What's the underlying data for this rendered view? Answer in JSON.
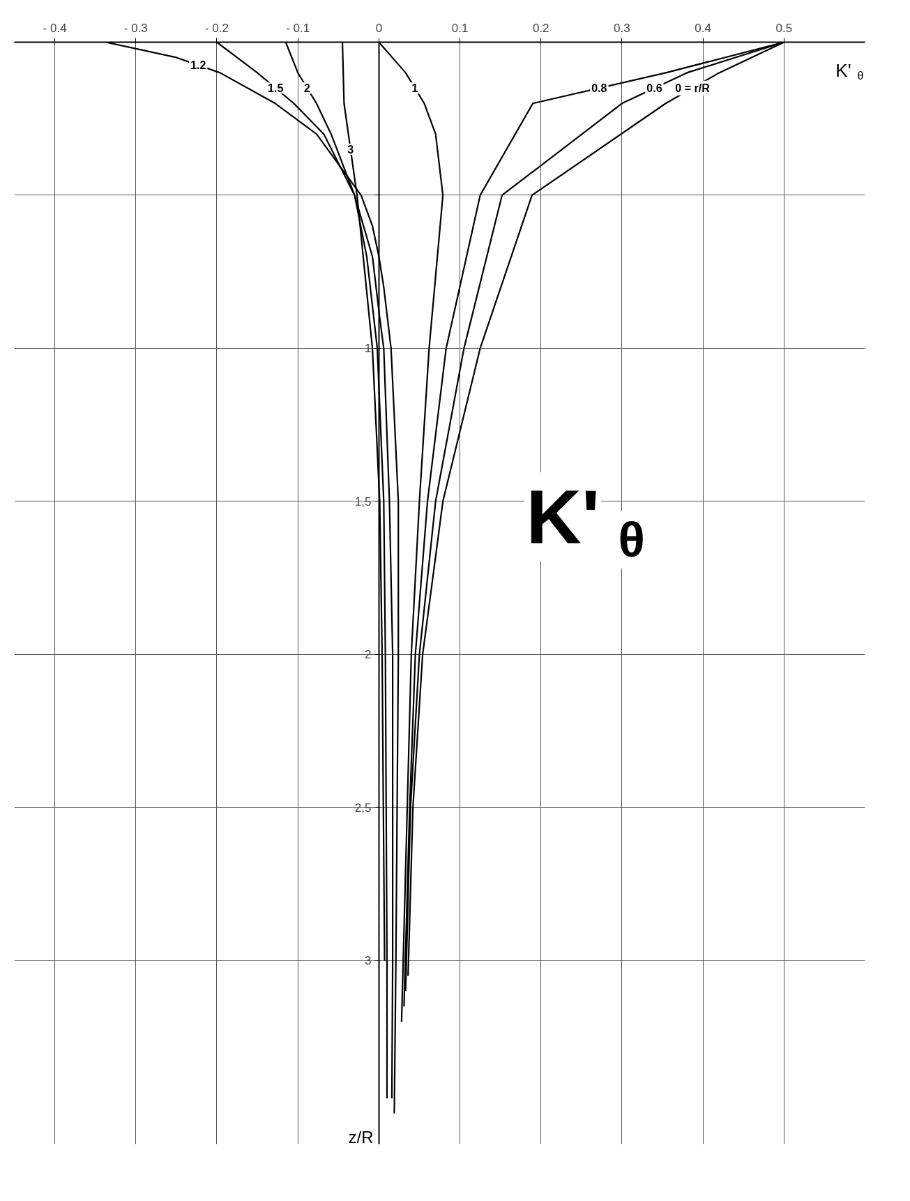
{
  "chart_data": {
    "type": "line",
    "xlabel": "K'$_{θ}$",
    "ylabel": "z/R",
    "annotations": [
      "K'$_{θ}$"
    ],
    "xlim": [
      -0.45,
      0.6
    ],
    "ylim": [
      3.6,
      0
    ],
    "xticks": [
      {
        "value": -0.4,
        "label": "- 0.4"
      },
      {
        "value": -0.3,
        "label": "- 0.3"
      },
      {
        "value": -0.2,
        "label": "- 0.2"
      },
      {
        "value": -0.1,
        "label": "- 0.1"
      },
      0,
      0.1,
      0.2,
      0.3,
      0.4,
      0.5
    ],
    "yticks": [
      {
        "value": 0.5,
        "label": null
      },
      1,
      {
        "value": 1.5,
        "label": "1,5"
      },
      2,
      {
        "value": 2.5,
        "label": "2,5"
      },
      3
    ],
    "grid": true,
    "marker": "none",
    "line_style": "solid",
    "series": [
      {
        "name": "0 = r/R",
        "color": "#000000",
        "x": [
          0.5,
          0.42,
          0.354,
          0.189,
          0.125,
          0.079,
          0.054,
          0.042,
          0.036
        ],
        "values": [
          0,
          0.1,
          0.2,
          0.5,
          1,
          1.5,
          2,
          2.5,
          3.05
        ]
      },
      {
        "name": "0.6",
        "color": "#000000",
        "x": [
          0.5,
          0.38,
          0.3,
          0.152,
          0.105,
          0.07,
          0.05,
          0.039,
          0.033
        ],
        "values": [
          0,
          0.1,
          0.2,
          0.5,
          1,
          1.5,
          2,
          2.5,
          3.1
        ]
      },
      {
        "name": "0.8",
        "color": "#000000",
        "x": [
          0.5,
          0.354,
          0.19,
          0.125,
          0.083,
          0.06,
          0.045,
          0.038,
          0.031
        ],
        "values": [
          0,
          0.1,
          0.2,
          0.5,
          1,
          1.5,
          2,
          2.5,
          3.15
        ]
      },
      {
        "name": "1",
        "color": "#000000",
        "x": [
          0,
          0.033,
          0.056,
          0.07,
          0.079,
          0.062,
          0.05,
          0.04,
          0.035,
          0.028
        ],
        "values": [
          0,
          0.1,
          0.2,
          0.3,
          0.5,
          1,
          1.5,
          2,
          2.5,
          3.2
        ]
      },
      {
        "name": "1.2",
        "color": "#000000",
        "x": [
          -0.337,
          -0.25,
          -0.196,
          -0.128,
          -0.077,
          -0.022,
          -0.008,
          0,
          0.006,
          0.015,
          0.024,
          0.024,
          0.021,
          0.019
        ],
        "values": [
          0,
          0.05,
          0.1,
          0.2,
          0.3,
          0.5,
          0.6,
          0.7,
          0.8,
          1,
          1.5,
          2,
          3,
          3.5
        ]
      },
      {
        "name": "1.5",
        "color": "#000000",
        "x": [
          -0.2,
          -0.15,
          -0.105,
          -0.068,
          -0.03,
          -0.008,
          0.001,
          0.006,
          0.013,
          0.017,
          0.017,
          0.016
        ],
        "values": [
          0,
          0.1,
          0.2,
          0.3,
          0.5,
          0.7,
          0.9,
          1,
          1.5,
          2,
          3,
          3.45
        ]
      },
      {
        "name": "2",
        "color": "#000000",
        "x": [
          -0.115,
          -0.1,
          -0.077,
          -0.059,
          -0.03,
          -0.015,
          -0.002,
          0.006,
          0.008,
          0.01,
          0.01
        ],
        "values": [
          0,
          0.1,
          0.2,
          0.3,
          0.5,
          0.7,
          1,
          1.5,
          2,
          3,
          3.45
        ]
      },
      {
        "name": "3",
        "color": "#000000",
        "x": [
          -0.045,
          -0.043,
          -0.027,
          -0.008,
          0.001,
          0.004,
          0.007
        ],
        "values": [
          0,
          0.2,
          0.5,
          1,
          1.5,
          2,
          3
        ]
      }
    ]
  }
}
